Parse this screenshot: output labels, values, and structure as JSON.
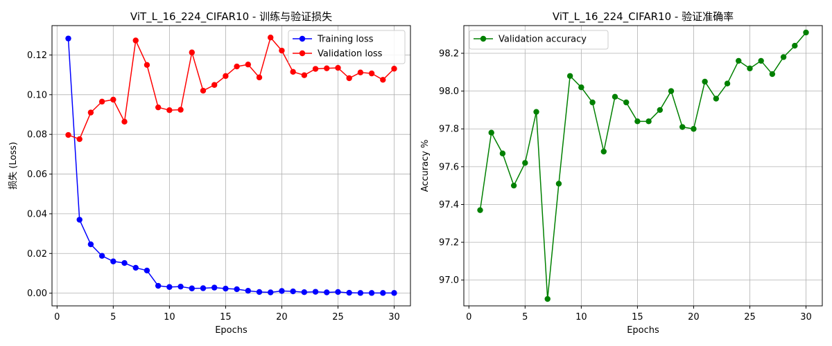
{
  "chart_data": [
    {
      "type": "line",
      "title": "ViT_L_16_224_CIFAR10 - 训练与验证损失",
      "xlabel": "Epochs",
      "ylabel": "损失 (Loss)",
      "xlim": [
        -0.45,
        31.45
      ],
      "ylim": [
        -0.0064,
        0.1348
      ],
      "xticks": [
        0,
        5,
        10,
        15,
        20,
        25,
        30
      ],
      "yticks": [
        0.0,
        0.02,
        0.04,
        0.06,
        0.08,
        0.1,
        0.12
      ],
      "ytick_labels": [
        "0.00",
        "0.02",
        "0.04",
        "0.06",
        "0.08",
        "0.10",
        "0.12"
      ],
      "grid": true,
      "legend_position": "top-right",
      "x": [
        1,
        2,
        3,
        4,
        5,
        6,
        7,
        8,
        9,
        10,
        11,
        12,
        13,
        14,
        15,
        16,
        17,
        18,
        19,
        20,
        21,
        22,
        23,
        24,
        25,
        26,
        27,
        28,
        29,
        30
      ],
      "series": [
        {
          "name": "Training loss",
          "color": "#0000ff",
          "marker": "circle",
          "values": [
            0.1283,
            0.037,
            0.0246,
            0.0188,
            0.016,
            0.0152,
            0.0128,
            0.0114,
            0.0037,
            0.0031,
            0.0033,
            0.0024,
            0.0025,
            0.0028,
            0.0023,
            0.002,
            0.0012,
            0.0006,
            0.0004,
            0.0011,
            0.0009,
            0.0005,
            0.0007,
            0.0004,
            0.0006,
            0.0002,
            0.0001,
            0.0001,
            0.0001,
            0.0001
          ]
        },
        {
          "name": "Validation loss",
          "color": "#ff0000",
          "marker": "circle",
          "values": [
            0.0797,
            0.0776,
            0.091,
            0.0965,
            0.0975,
            0.0864,
            0.1273,
            0.115,
            0.0936,
            0.0922,
            0.0924,
            0.1213,
            0.102,
            0.1049,
            0.1094,
            0.1142,
            0.1152,
            0.1087,
            0.1288,
            0.1222,
            0.1115,
            0.1098,
            0.113,
            0.1133,
            0.1135,
            0.1083,
            0.1112,
            0.1107,
            0.1075,
            0.1131
          ]
        }
      ]
    },
    {
      "type": "line",
      "title": "ViT_L_16_224_CIFAR10 - 验证准确率",
      "xlabel": "Epochs",
      "ylabel": "Accuracy %",
      "xlim": [
        -0.45,
        31.45
      ],
      "ylim": [
        96.8635,
        98.3465
      ],
      "xticks": [
        0,
        5,
        10,
        15,
        20,
        25,
        30
      ],
      "yticks": [
        97.0,
        97.2,
        97.4,
        97.6,
        97.8,
        98.0,
        98.2
      ],
      "ytick_labels": [
        "97.0",
        "97.2",
        "97.4",
        "97.6",
        "97.8",
        "98.0",
        "98.2"
      ],
      "grid": true,
      "legend_position": "top-left",
      "x": [
        1,
        2,
        3,
        4,
        5,
        6,
        7,
        8,
        9,
        10,
        11,
        12,
        13,
        14,
        15,
        16,
        17,
        18,
        19,
        20,
        21,
        22,
        23,
        24,
        25,
        26,
        27,
        28,
        29,
        30
      ],
      "series": [
        {
          "name": "Validation accuracy",
          "color": "#008000",
          "marker": "circle",
          "values": [
            97.37,
            97.78,
            97.67,
            97.5,
            97.62,
            97.89,
            96.9,
            97.51,
            98.08,
            98.02,
            97.94,
            97.68,
            97.97,
            97.94,
            97.84,
            97.84,
            97.9,
            98.0,
            97.81,
            97.8,
            98.05,
            97.96,
            98.04,
            98.16,
            98.12,
            98.16,
            98.09,
            98.18,
            98.24,
            98.31
          ]
        }
      ]
    }
  ]
}
